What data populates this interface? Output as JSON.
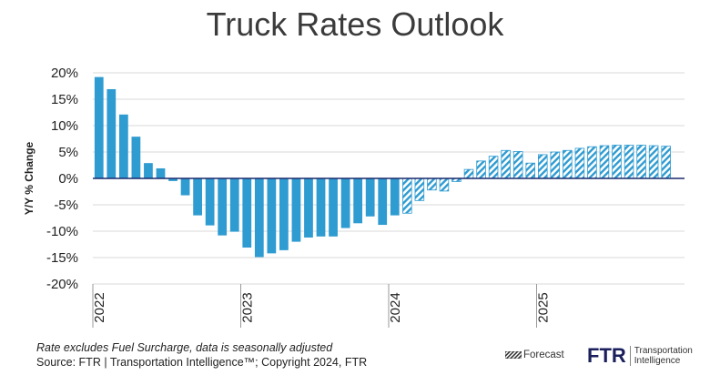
{
  "title": "Truck Rates Outlook",
  "footer": {
    "note": "Rate excludes Fuel Surcharge, data is seasonally adjusted",
    "source": "Source: FTR | Transportation Intelligence™; Copyright 2024, FTR"
  },
  "legend": {
    "forecast_label": "Forecast"
  },
  "logo": {
    "mark": "FTR",
    "line1": "Transportation",
    "line2": "Intelligence"
  },
  "colors": {
    "bar": "#2e9bd1",
    "zero_line": "#1a2a6c",
    "grid": "#d9d9d9"
  },
  "chart_data": {
    "type": "bar",
    "ylabel": "Y/Y % Change",
    "ylim": [
      -20,
      20
    ],
    "yticks": [
      20,
      15,
      10,
      5,
      0,
      -5,
      -10,
      -15,
      -20
    ],
    "ytick_labels": [
      "20%",
      "15%",
      "10%",
      "5%",
      "0%",
      "-5%",
      "-10%",
      "-15%",
      "-20%"
    ],
    "grid": true,
    "year_labels": [
      {
        "label": "2022",
        "index": 0
      },
      {
        "label": "2023",
        "index": 12
      },
      {
        "label": "2024",
        "index": 24
      },
      {
        "label": "2025",
        "index": 36
      }
    ],
    "series": [
      {
        "kind": "actual",
        "start_index": 0,
        "values": [
          19.2,
          16.9,
          12.1,
          7.9,
          2.9,
          1.9,
          -0.5,
          -3.2,
          -7.0,
          -8.9,
          -10.8,
          -10.1,
          -13.1,
          -14.9,
          -14.2,
          -13.6,
          -12.0,
          -11.2,
          -11.0,
          -11.0,
          -9.4,
          -8.5,
          -7.2,
          -8.8,
          -7.0
        ]
      },
      {
        "kind": "forecast",
        "start_index": 25,
        "values": [
          -6.6,
          -4.2,
          -2.2,
          -2.4,
          -0.6,
          1.7,
          3.3,
          4.2,
          5.3,
          5.1,
          2.9,
          4.5,
          5.0,
          5.3,
          5.7,
          6.0,
          6.2,
          6.3,
          6.3,
          6.3,
          6.2,
          6.1
        ]
      }
    ]
  }
}
